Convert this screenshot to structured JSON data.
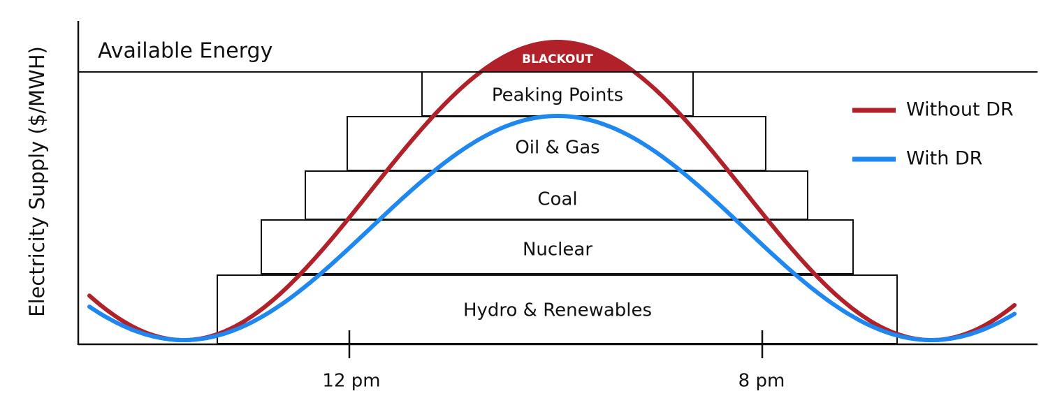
{
  "y_axis_label": "Electricity Supply ($/MWH)",
  "available_energy": "Available Energy",
  "blackout": "BLACKOUT",
  "blocks": [
    "Peaking Points",
    "Oil & Gas",
    "Coal",
    "Nuclear",
    "Hydro & Renewables"
  ],
  "x_labels": [
    "12 pm",
    "8 pm"
  ],
  "legend": [
    "Without DR",
    "With DR"
  ]
}
